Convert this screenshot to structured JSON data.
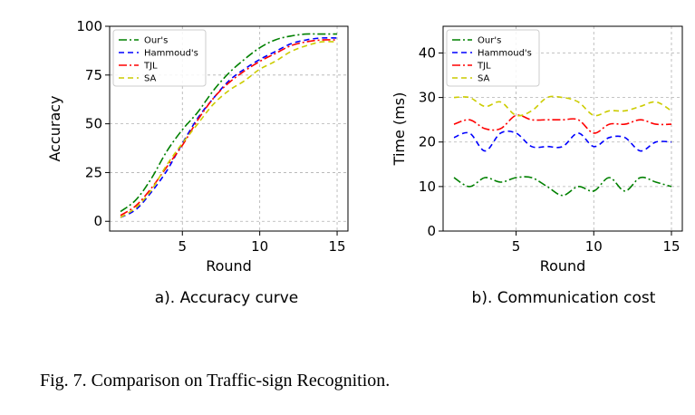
{
  "caption": "Fig. 7.  Comparison on Traffic-sign Recognition.",
  "chart_data": [
    {
      "type": "line",
      "subcaption": "a). Accuracy curve",
      "xlabel": "Round",
      "ylabel": "Accuracy",
      "xlim": [
        0.3,
        15.7
      ],
      "ylim": [
        -5,
        100
      ],
      "xticks": [
        5,
        10,
        15
      ],
      "yticks": [
        0,
        25,
        50,
        75,
        100
      ],
      "grid": true,
      "legend": "top-left",
      "x": [
        1,
        2,
        3,
        4,
        5,
        6,
        7,
        8,
        9,
        10,
        11,
        12,
        13,
        14,
        15
      ],
      "series": [
        {
          "name": "Our's",
          "color": "#008000",
          "dash": "dashdot",
          "values": [
            5,
            11,
            22,
            36,
            47,
            56,
            67,
            76,
            83,
            89,
            93,
            95,
            96,
            96,
            96
          ]
        },
        {
          "name": "Hammoud's",
          "color": "#0000ff",
          "dash": "dashed",
          "values": [
            2,
            6,
            15,
            26,
            40,
            53,
            63,
            72,
            78,
            83,
            87,
            91,
            93,
            94,
            94
          ]
        },
        {
          "name": "TJL",
          "color": "#ff0000",
          "dash": "dashdot",
          "values": [
            3,
            8,
            17,
            28,
            39,
            52,
            63,
            71,
            77,
            82,
            86,
            90,
            92,
            93,
            93
          ]
        },
        {
          "name": "SA",
          "color": "#cccc00",
          "dash": "dashed",
          "values": [
            2,
            7,
            16,
            29,
            40,
            50,
            60,
            67,
            72,
            78,
            82,
            87,
            90,
            92,
            92
          ]
        }
      ]
    },
    {
      "type": "line",
      "subcaption": "b). Communication cost",
      "xlabel": "Round",
      "ylabel": "Time (ms)",
      "xlim": [
        0.3,
        15.7
      ],
      "ylim": [
        0,
        46
      ],
      "xticks": [
        5,
        10,
        15
      ],
      "yticks": [
        0,
        10,
        20,
        30,
        40
      ],
      "grid": true,
      "legend": "top-left",
      "x": [
        1,
        2,
        3,
        4,
        5,
        6,
        7,
        8,
        9,
        10,
        11,
        12,
        13,
        14,
        15
      ],
      "series": [
        {
          "name": "Our's",
          "color": "#008000",
          "dash": "dashdot",
          "values": [
            12,
            10,
            12,
            11,
            12,
            12,
            10,
            8,
            10,
            9,
            12,
            9,
            12,
            11,
            10
          ]
        },
        {
          "name": "Hammoud's",
          "color": "#0000ff",
          "dash": "dashed",
          "values": [
            21,
            22,
            18,
            22,
            22,
            19,
            19,
            19,
            22,
            19,
            21,
            21,
            18,
            20,
            20
          ]
        },
        {
          "name": "TJL",
          "color": "#ff0000",
          "dash": "dashdot",
          "values": [
            24,
            25,
            23,
            23,
            26,
            25,
            25,
            25,
            25,
            22,
            24,
            24,
            25,
            24,
            24
          ]
        },
        {
          "name": "SA",
          "color": "#cccc00",
          "dash": "dashed",
          "values": [
            30,
            30,
            28,
            29,
            26,
            27,
            30,
            30,
            29,
            26,
            27,
            27,
            28,
            29,
            27
          ]
        }
      ]
    }
  ]
}
